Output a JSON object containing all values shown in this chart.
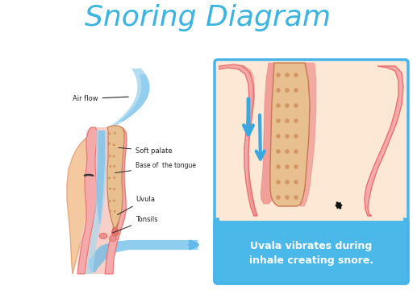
{
  "title": "Snoring Diagram",
  "title_color": "#3ab4e0",
  "title_fontsize": 26,
  "bg_color": "#ffffff",
  "labels": {
    "air_flow": "Air flow",
    "soft_palate": "Soft palate",
    "base_tongue": "Base of  the tongue",
    "uvula": "Uvula",
    "tonsils": "Tonsils"
  },
  "caption": "Uvala vibrates during\ninhale creating snore.",
  "caption_color": "#ffffff",
  "caption_bg": "#4ab8e8",
  "skin_light": "#f5c9a0",
  "skin_mid": "#e8a87c",
  "skin_dark": "#d4906a",
  "throat_pink": "#e87070",
  "throat_light": "#f4aaaa",
  "throat_pale": "#f8d0c8",
  "palate_tan": "#e8b878",
  "palate_dark": "#c87850",
  "tongue_color": "#d4906e",
  "airway_blue_light": "#a8d8f0",
  "airway_blue": "#60b8e8",
  "box_border": "#48b4e8",
  "box_bg": "#fce8d8",
  "tissue_tan": "#e8c090",
  "tissue_dot": "#cc8855",
  "arrow_blue": "#38a8e0",
  "label_color": "#222222",
  "label_fontsize": 6.0
}
